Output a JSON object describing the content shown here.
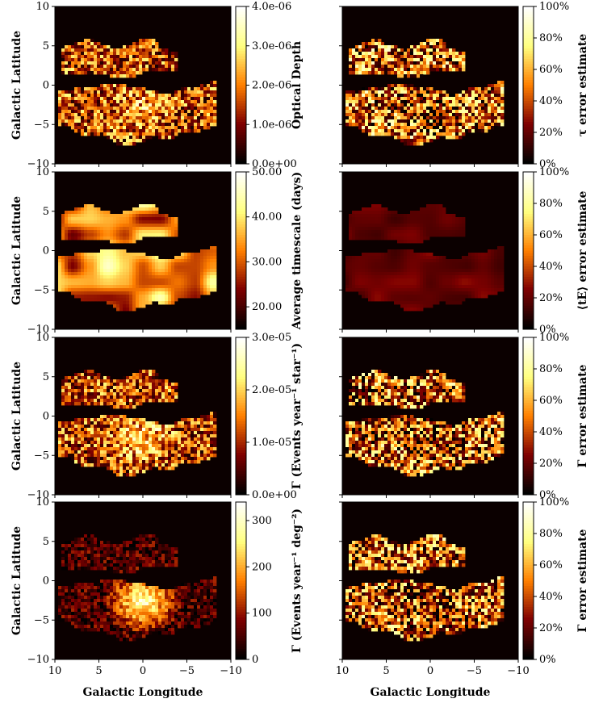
{
  "chart_data": {
    "type": "heatmap",
    "layout": "4 rows x 2 columns",
    "shared_x": {
      "label": "Galactic Longitude",
      "ticks": [
        10,
        5,
        0,
        -5,
        -10
      ],
      "range": [
        10,
        -10
      ]
    },
    "shared_y": {
      "label": "Galactic Latitude",
      "ticks": [
        10,
        5,
        0,
        -5,
        -10
      ],
      "range": [
        -10,
        10
      ]
    },
    "colormap": "afmhot",
    "panels": [
      {
        "row": 0,
        "col": 0,
        "ylabel": "Galactic Latitude",
        "colorbar_label": "Optical Depth",
        "colorbar_ticks": [
          "0.0e+00",
          "1.0e-06",
          "2.0e-06",
          "3.0e-06",
          "4.0e-06"
        ],
        "range": [
          0,
          4e-06
        ],
        "seed": 11,
        "smooth": false,
        "base": 0.4,
        "centre_boost": 0.2,
        "variance": 0.35,
        "cell": 4
      },
      {
        "row": 0,
        "col": 1,
        "colorbar_label": "τ error estimate",
        "colorbar_ticks": [
          "0%",
          "20%",
          "40%",
          "60%",
          "80%",
          "100%"
        ],
        "range": [
          0,
          100
        ],
        "seed": 23,
        "smooth": false,
        "base": 0.45,
        "centre_boost": -0.15,
        "variance": 0.45,
        "cell": 4
      },
      {
        "row": 1,
        "col": 0,
        "ylabel": "Galactic Latitude",
        "colorbar_label": "Average timescale (days)",
        "colorbar_ticks": [
          "20.00",
          "30.00",
          "40.00",
          "50.00"
        ],
        "range": [
          15,
          50
        ],
        "seed": 37,
        "smooth": true,
        "base": 0.55,
        "centre_boost": 0.0,
        "variance": 0.35,
        "cell": 4
      },
      {
        "row": 1,
        "col": 1,
        "colorbar_label": "⟨tE⟩ error estimate",
        "colorbar_ticks": [
          "0%",
          "20%",
          "40%",
          "60%",
          "80%",
          "100%"
        ],
        "range": [
          0,
          100
        ],
        "seed": 41,
        "smooth": true,
        "base": 0.2,
        "centre_boost": 0.04,
        "variance": 0.08,
        "cell": 4
      },
      {
        "row": 2,
        "col": 0,
        "ylabel": "Galactic Latitude",
        "colorbar_label": "Γ (Events year⁻¹ star⁻¹)",
        "colorbar_ticks": [
          "0.0e+00",
          "1.0e-05",
          "2.0e-05",
          "3.0e-05"
        ],
        "range": [
          0,
          3e-05
        ],
        "seed": 53,
        "smooth": false,
        "base": 0.4,
        "centre_boost": 0.3,
        "variance": 0.35,
        "cell": 4
      },
      {
        "row": 2,
        "col": 1,
        "colorbar_label": "Γ error estimate",
        "colorbar_ticks": [
          "0%",
          "20%",
          "40%",
          "60%",
          "80%",
          "100%"
        ],
        "range": [
          0,
          100
        ],
        "seed": 67,
        "smooth": false,
        "base": 0.42,
        "centre_boost": -0.12,
        "variance": 0.45,
        "cell": 4
      },
      {
        "row": 3,
        "col": 0,
        "ylabel": "Galactic Latitude",
        "colorbar_label": "Γ (Events year⁻¹ deg⁻²)",
        "colorbar_ticks": [
          "0",
          "100",
          "200",
          "300"
        ],
        "range": [
          0,
          340
        ],
        "seed": 79,
        "smooth": false,
        "base": 0.15,
        "centre_boost": 0.75,
        "variance": 0.18,
        "cell": 4
      },
      {
        "row": 3,
        "col": 1,
        "colorbar_label": "Γ error estimate",
        "colorbar_ticks": [
          "0%",
          "20%",
          "40%",
          "60%",
          "80%",
          "100%"
        ],
        "range": [
          0,
          100
        ],
        "seed": 83,
        "smooth": false,
        "base": 0.42,
        "centre_boost": -0.12,
        "variance": 0.45,
        "cell": 4
      }
    ]
  }
}
